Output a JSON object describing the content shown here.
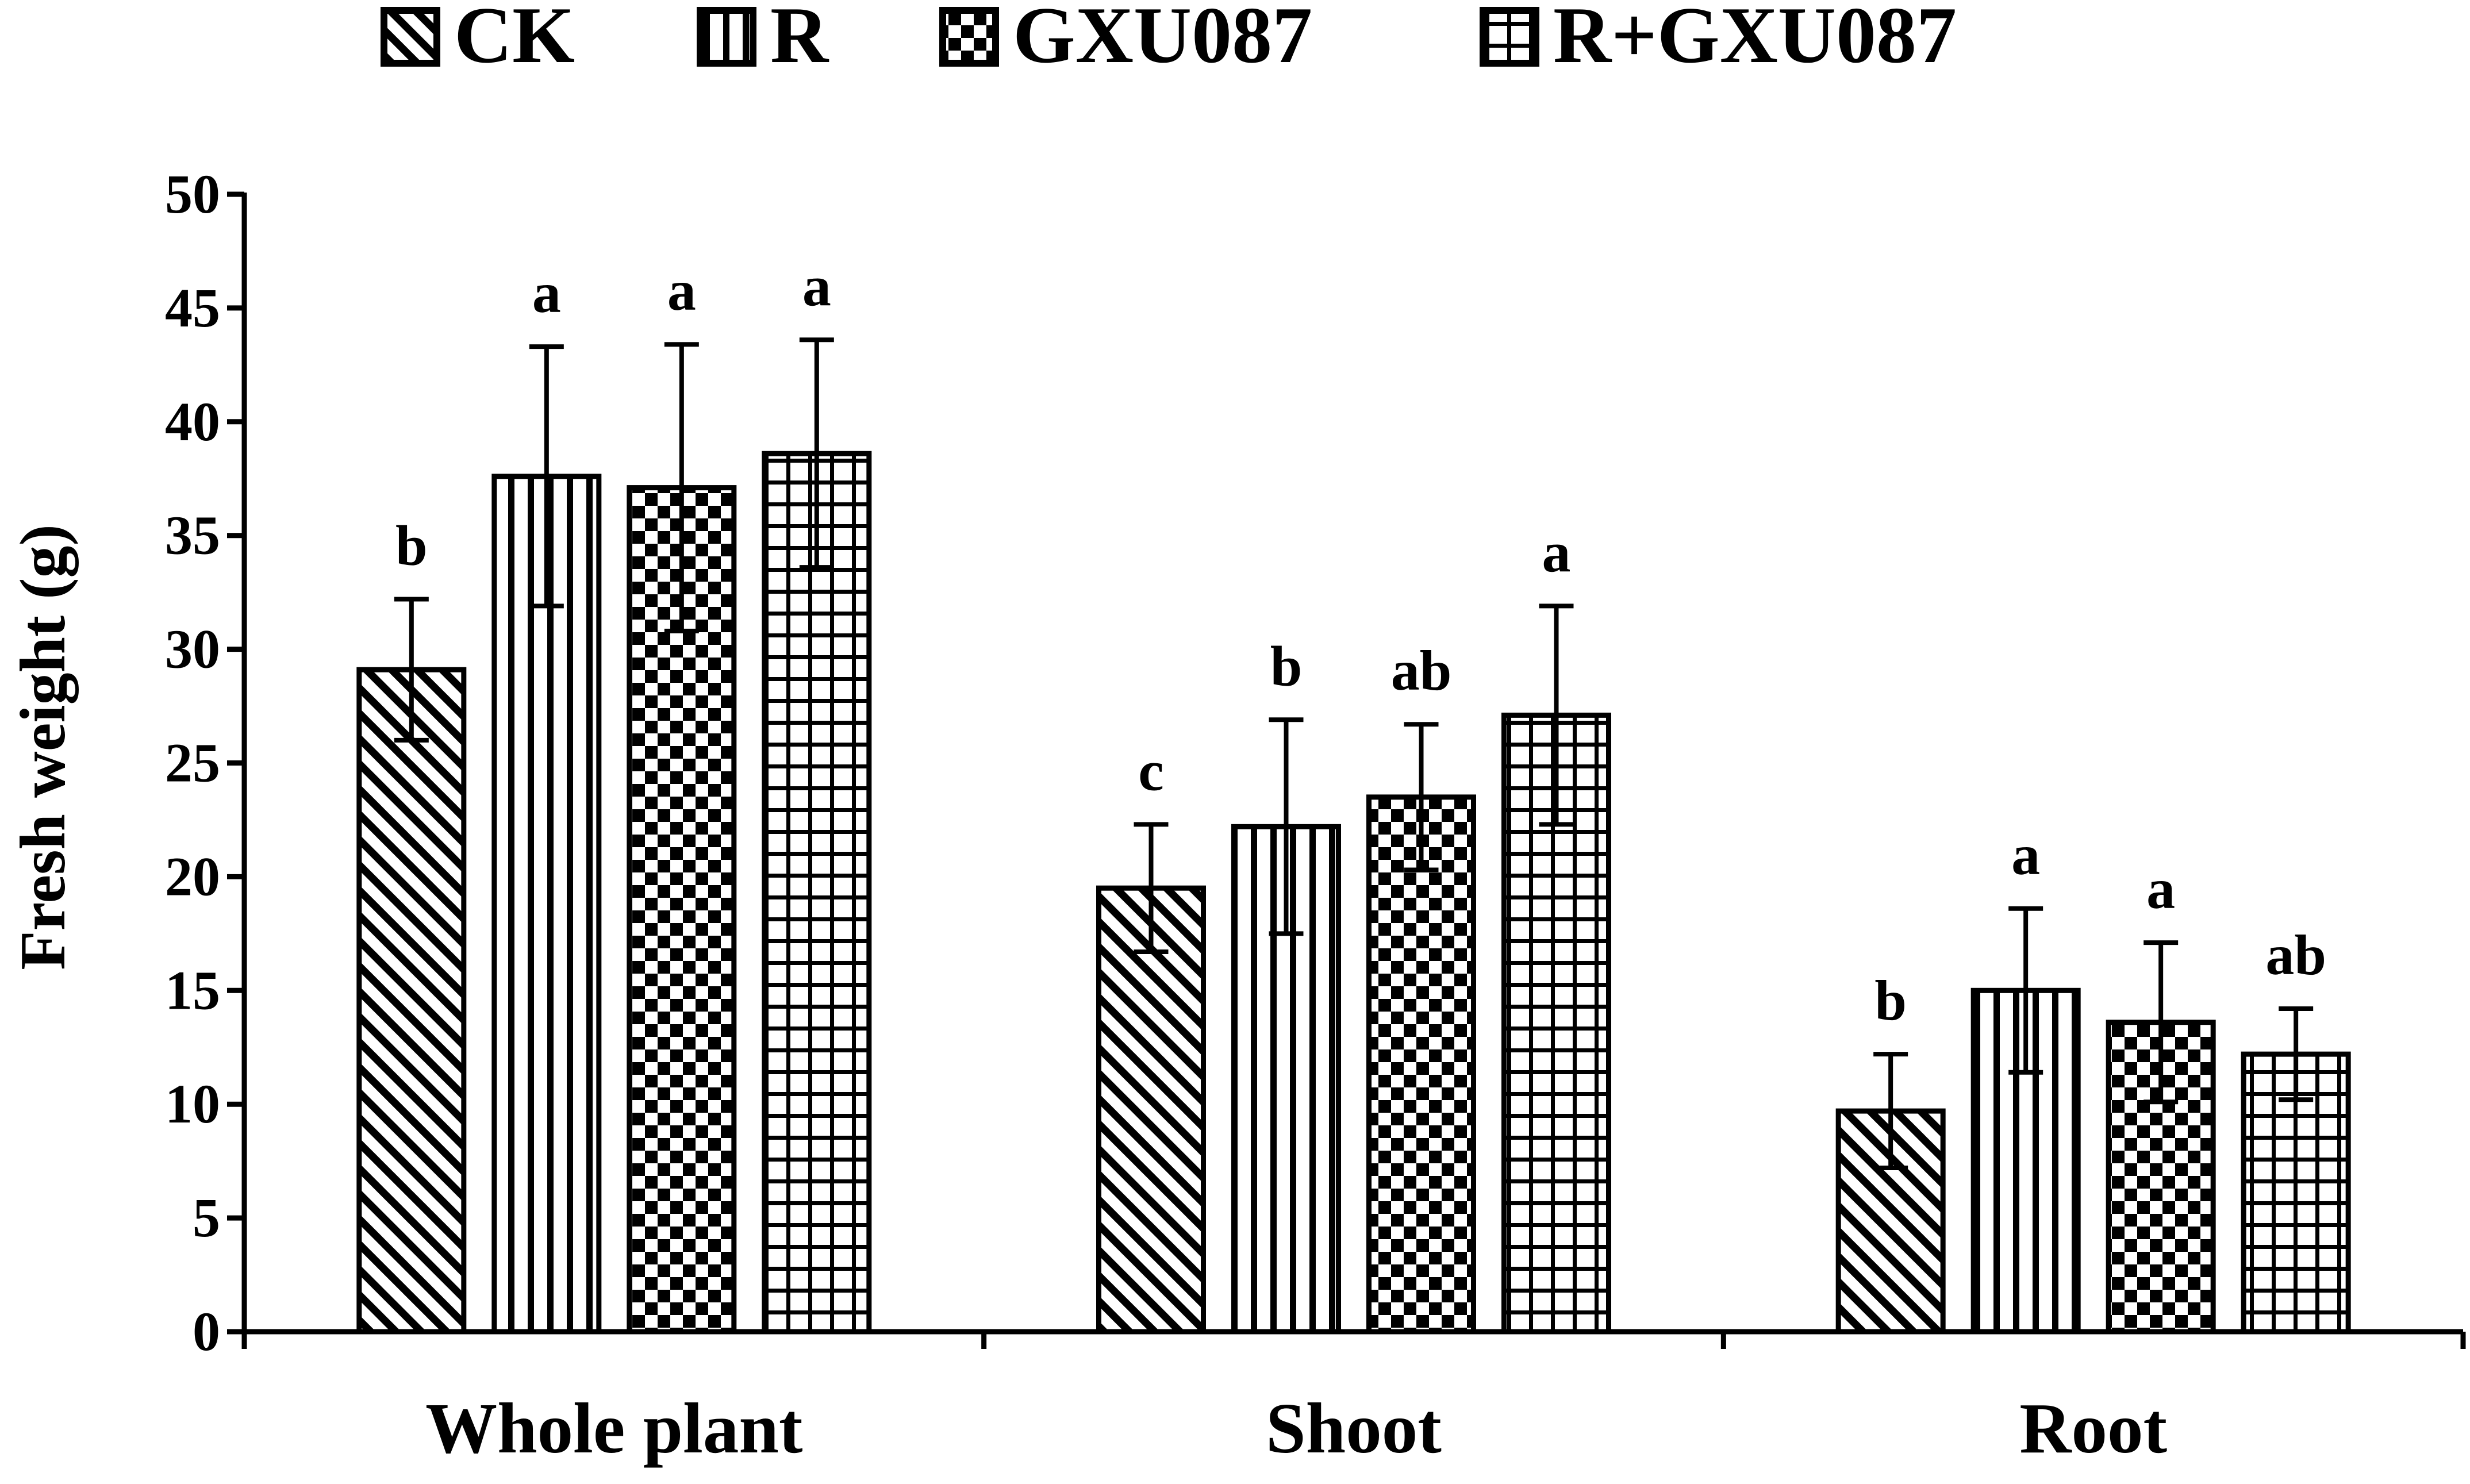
{
  "chart_data": {
    "type": "bar",
    "title": "",
    "xlabel": "",
    "ylabel": "Fresh weight (g)",
    "ylim": [
      0,
      50
    ],
    "yticks": [
      0,
      5,
      10,
      15,
      20,
      25,
      30,
      35,
      40,
      45,
      50
    ],
    "categories": [
      "Whole plant",
      "Shoot",
      "Root"
    ],
    "legend_position": "top",
    "series": [
      {
        "name": "CK",
        "pattern": "diagonal-stripes",
        "values": [
          29.1,
          19.5,
          9.7
        ],
        "errors": [
          3.1,
          2.8,
          2.5
        ],
        "labels": [
          "b",
          "c",
          "b"
        ]
      },
      {
        "name": "R",
        "pattern": "vertical-stripes",
        "values": [
          37.6,
          22.2,
          15.0
        ],
        "errors": [
          5.7,
          4.7,
          3.6
        ],
        "labels": [
          "a",
          "b",
          "a"
        ]
      },
      {
        "name": "GXU087",
        "pattern": "checkerboard",
        "values": [
          37.1,
          23.5,
          13.6
        ],
        "errors": [
          6.3,
          3.2,
          3.5
        ],
        "labels": [
          "a",
          "ab",
          "a"
        ]
      },
      {
        "name": "R+GXU087",
        "pattern": "grid",
        "values": [
          38.6,
          27.1,
          12.2
        ],
        "errors": [
          5.0,
          4.8,
          2.0
        ],
        "labels": [
          "a",
          "a",
          "ab"
        ]
      }
    ]
  }
}
